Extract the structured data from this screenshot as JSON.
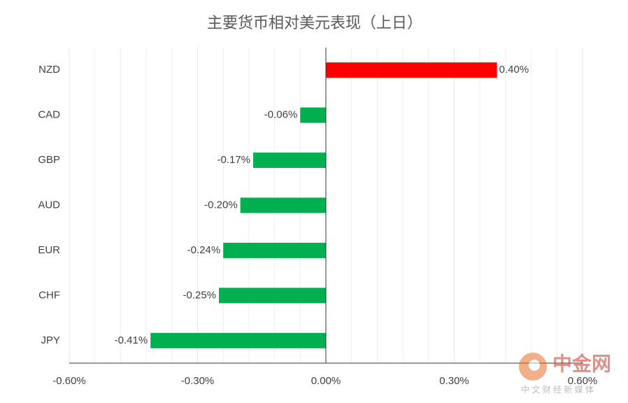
{
  "chart_data": {
    "type": "hbar",
    "title": "主要货币相对美元表现（上日）",
    "categories": [
      "NZD",
      "CAD",
      "GBP",
      "AUD",
      "EUR",
      "CHF",
      "JPY"
    ],
    "values": [
      0.4,
      -0.06,
      -0.17,
      -0.2,
      -0.24,
      -0.25,
      -0.41
    ],
    "value_labels": [
      "0.40%",
      "-0.06%",
      "-0.17%",
      "-0.20%",
      "-0.24%",
      "-0.25%",
      "-0.41%"
    ],
    "colors": [
      "#ff0000",
      "#00b050",
      "#00b050",
      "#00b050",
      "#00b050",
      "#00b050",
      "#00b050"
    ],
    "xlim": [
      -0.6,
      0.6
    ],
    "xticks": [
      {
        "value": -0.6,
        "label": "-0.60%"
      },
      {
        "value": -0.3,
        "label": "-0.30%"
      },
      {
        "value": 0,
        "label": "0.00%"
      },
      {
        "value": 0.3,
        "label": "0.30%"
      },
      {
        "value": 0.6,
        "label": "0.60%"
      }
    ],
    "grid": true,
    "watermark": {
      "name": "中金网",
      "tagline": "中 文 财 经 新 媒 体"
    }
  }
}
